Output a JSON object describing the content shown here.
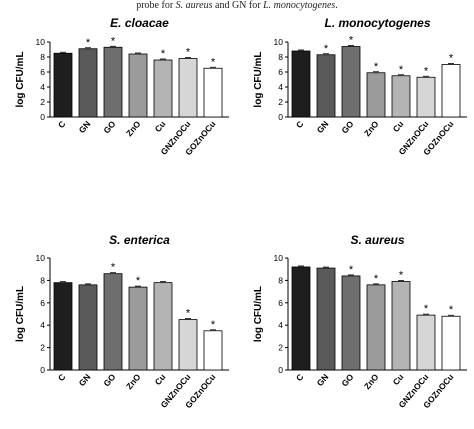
{
  "caption": {
    "pre": "probe for ",
    "sa": "S. aureus",
    "mid": " and GN for ",
    "lm": "L. monocytogenes",
    "end": "."
  },
  "chart_data": [
    {
      "type": "bar",
      "title": "E. cloacae",
      "ylabel": "log CFU/mL",
      "xlabel": "",
      "ylim": [
        0,
        10
      ],
      "yticks": [
        0,
        2,
        4,
        6,
        8,
        10
      ],
      "categories": [
        "C",
        "GN",
        "GO",
        "ZnO",
        "Cu",
        "GNZnOCu",
        "GOZnOCu"
      ],
      "values": [
        8.5,
        9.1,
        9.3,
        8.4,
        7.6,
        7.8,
        6.5
      ],
      "significant": [
        false,
        true,
        true,
        false,
        true,
        true,
        true
      ],
      "grid": false,
      "colors": [
        "#1e1e1e",
        "#5a5a5a",
        "#6e6e6e",
        "#9b9b9b",
        "#b4b4b4",
        "#d6d6d6",
        "#ffffff"
      ]
    },
    {
      "type": "bar",
      "title": "L. monocytogenes",
      "ylabel": "log CFU/mL",
      "xlabel": "",
      "ylim": [
        0,
        10
      ],
      "yticks": [
        0,
        2,
        4,
        6,
        8,
        10
      ],
      "categories": [
        "C",
        "GN",
        "GO",
        "ZnO",
        "Cu",
        "GNZnOCu",
        "GOZnOCu"
      ],
      "values": [
        8.8,
        8.3,
        9.4,
        5.9,
        5.5,
        5.3,
        7.0
      ],
      "significant": [
        false,
        true,
        true,
        true,
        true,
        true,
        true
      ],
      "grid": false,
      "colors": [
        "#1e1e1e",
        "#5a5a5a",
        "#6e6e6e",
        "#9b9b9b",
        "#b4b4b4",
        "#d6d6d6",
        "#ffffff"
      ]
    },
    {
      "type": "bar",
      "title": "S. enterica",
      "ylabel": "log CFU/mL",
      "xlabel": "",
      "ylim": [
        0,
        10
      ],
      "yticks": [
        0,
        2,
        4,
        6,
        8,
        10
      ],
      "categories": [
        "C",
        "GN",
        "GO",
        "ZnO",
        "Cu",
        "GNZnOCu",
        "GOZnOCu"
      ],
      "values": [
        7.8,
        7.6,
        8.6,
        7.4,
        7.8,
        4.5,
        3.5
      ],
      "significant": [
        false,
        false,
        true,
        true,
        false,
        true,
        true
      ],
      "grid": false,
      "colors": [
        "#1e1e1e",
        "#5a5a5a",
        "#6e6e6e",
        "#9b9b9b",
        "#b4b4b4",
        "#d6d6d6",
        "#ffffff"
      ]
    },
    {
      "type": "bar",
      "title": "S. aureus",
      "ylabel": "log CFU/mL",
      "xlabel": "",
      "ylim": [
        0,
        10
      ],
      "yticks": [
        0,
        2,
        4,
        6,
        8,
        10
      ],
      "categories": [
        "C",
        "GN",
        "GO",
        "ZnO",
        "Cu",
        "GNZnOCu",
        "GOZnOCu"
      ],
      "values": [
        9.2,
        9.1,
        8.4,
        7.6,
        7.9,
        4.9,
        4.8
      ],
      "significant": [
        false,
        false,
        true,
        true,
        true,
        true,
        true
      ],
      "grid": false,
      "colors": [
        "#1e1e1e",
        "#5a5a5a",
        "#6e6e6e",
        "#9b9b9b",
        "#b4b4b4",
        "#d6d6d6",
        "#ffffff"
      ]
    }
  ]
}
